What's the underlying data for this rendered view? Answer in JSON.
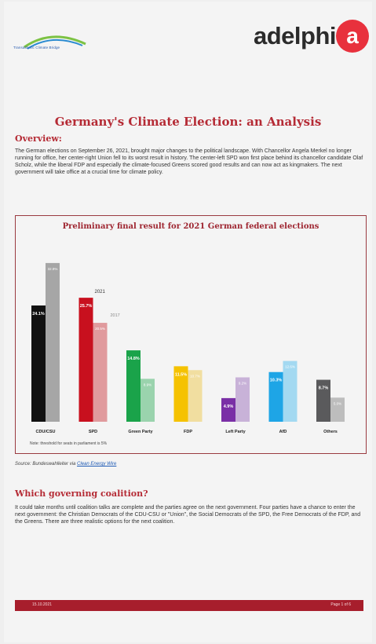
{
  "header": {
    "partner_logo_text": "Transatlantic Climate Bridge",
    "brand_name": "adelphi",
    "brand_badge_letter": "a",
    "brand_color": "#e8313d"
  },
  "title": "Germany's Climate Election: an Analysis",
  "overview": {
    "heading": "Overview:",
    "text": "The German elections on September 26, 2021, brought major changes to the political landscape. With Chancellor Angela Merkel no longer running for office, her center-right Union fell to its worst result in history. The center-left SPD won first place behind its chancellor candidate Olaf Scholz, while the liberal FDP and especially the climate-focused Greens scored good results and can now act as kingmakers. The next government will take office at a crucial time for climate policy."
  },
  "chart_data": {
    "type": "bar",
    "title": "Preliminary final result for 2021 German federal elections",
    "categories": [
      "CDU/CSU",
      "SPD",
      "Green Party",
      "FDP",
      "Left Party",
      "AfD",
      "Others"
    ],
    "series": [
      {
        "name": "2021",
        "values": [
          24.1,
          25.7,
          14.8,
          11.5,
          4.9,
          10.3,
          8.7
        ],
        "labels": [
          "24.1%",
          "25.7%",
          "14.8%",
          "11.5%",
          "4.9%",
          "10.3%",
          "8.7%"
        ]
      },
      {
        "name": "2017",
        "values": [
          32.9,
          20.5,
          8.9,
          10.7,
          9.2,
          12.6,
          5.0
        ],
        "labels": [
          "32.9%",
          "20.5%",
          "8.9%",
          "10.7%",
          "9.2%",
          "12.6%",
          "5.0%"
        ]
      }
    ],
    "colors_2021": [
      "#111111",
      "#c8101e",
      "#1aa34a",
      "#f5c200",
      "#7a2fa6",
      "#1ea5e6",
      "#5a5a5c"
    ],
    "colors_2017": [
      "#a6a6a6",
      "#e09a9d",
      "#9ad3ad",
      "#f1dea0",
      "#c8b2d8",
      "#a3d9f1",
      "#bdbdbd"
    ],
    "ylim": [
      0,
      35
    ],
    "legend_placement": "inline, above SPD bars",
    "note": "Note: threshold for seats in parliament is 5%",
    "grid": false
  },
  "source": {
    "prefix": "Source: Bundeswahlleiter via ",
    "link_text": "Clean Energy Wire"
  },
  "coalition": {
    "heading": "Which governing coalition?",
    "text": "It could take months until coalition talks are complete and the parties agree on the next government. Four parties have a chance to enter the next government: the Christian Democrats of the CDU-CSU or \"Union\", the Social Democrats of the SPD, the Free Democrats of the FDP, and the Greens. There are three realistic options for the next coalition."
  },
  "footer": {
    "date": "15.10.2021",
    "page": "Page 1 of 6"
  }
}
